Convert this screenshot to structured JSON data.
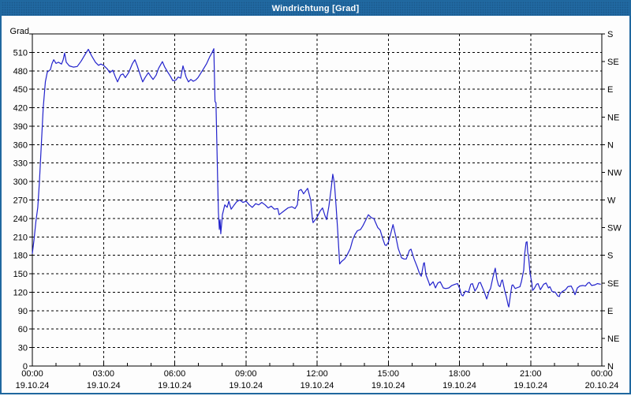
{
  "window": {
    "title": "Windrichtung [Grad]"
  },
  "colors": {
    "titlebar_bg": "#2169a2",
    "titlebar_text": "#ffffff",
    "window_border": "#20689f",
    "plot_border": "#000000",
    "grid": "#000000",
    "label": "#000000",
    "line": "#2222cc",
    "background": "#fdfdfd"
  },
  "chart_data": {
    "type": "line",
    "title": "Windrichtung [Grad]",
    "ylabel_left": "Grad",
    "ylim": [
      0,
      540
    ],
    "y_left_tick_step": 30,
    "y_left_ticks": [
      0,
      30,
      60,
      90,
      120,
      150,
      180,
      210,
      240,
      270,
      300,
      330,
      360,
      390,
      420,
      450,
      480,
      510
    ],
    "y_right_labels": [
      {
        "value": 0,
        "label": "N"
      },
      {
        "value": 45,
        "label": "NE"
      },
      {
        "value": 90,
        "label": "E"
      },
      {
        "value": 135,
        "label": "SE"
      },
      {
        "value": 180,
        "label": "S"
      },
      {
        "value": 225,
        "label": "SW"
      },
      {
        "value": 270,
        "label": "W"
      },
      {
        "value": 315,
        "label": "NW"
      },
      {
        "value": 360,
        "label": "N"
      },
      {
        "value": 405,
        "label": "NE"
      },
      {
        "value": 450,
        "label": "E"
      },
      {
        "value": 495,
        "label": "SE"
      },
      {
        "value": 540,
        "label": "S"
      }
    ],
    "xlim_hours": [
      0,
      24
    ],
    "x_ticks": [
      {
        "hour": 0,
        "time": "00:00",
        "date": "19.10.24"
      },
      {
        "hour": 3,
        "time": "03:00",
        "date": "19.10.24"
      },
      {
        "hour": 6,
        "time": "06:00",
        "date": "19.10.24"
      },
      {
        "hour": 9,
        "time": "09:00",
        "date": "19.10.24"
      },
      {
        "hour": 12,
        "time": "12:00",
        "date": "19.10.24"
      },
      {
        "hour": 15,
        "time": "15:00",
        "date": "19.10.24"
      },
      {
        "hour": 18,
        "time": "18:00",
        "date": "19.10.24"
      },
      {
        "hour": 21,
        "time": "21:00",
        "date": "19.10.24"
      },
      {
        "hour": 24,
        "time": "00:00",
        "date": "20.10.24"
      }
    ],
    "grid": {
      "horizontal_every_deg": 30,
      "vertical_every_hours": 3,
      "style": "dashed"
    },
    "legend": "none",
    "series": [
      {
        "name": "Windrichtung",
        "color": "#2222cc",
        "points": [
          [
            0.0,
            183
          ],
          [
            0.07,
            205
          ],
          [
            0.15,
            235
          ],
          [
            0.23,
            258
          ],
          [
            0.3,
            300
          ],
          [
            0.38,
            360
          ],
          [
            0.46,
            420
          ],
          [
            0.55,
            462
          ],
          [
            0.63,
            478
          ],
          [
            0.7,
            480
          ],
          [
            0.76,
            482
          ],
          [
            0.83,
            492
          ],
          [
            0.9,
            498
          ],
          [
            1.0,
            492
          ],
          [
            1.1,
            494
          ],
          [
            1.23,
            491
          ],
          [
            1.3,
            498
          ],
          [
            1.36,
            509
          ],
          [
            1.43,
            494
          ],
          [
            1.56,
            488
          ],
          [
            1.73,
            486
          ],
          [
            1.89,
            487
          ],
          [
            2.06,
            496
          ],
          [
            2.23,
            507
          ],
          [
            2.36,
            515
          ],
          [
            2.49,
            505
          ],
          [
            2.66,
            494
          ],
          [
            2.79,
            489
          ],
          [
            2.89,
            491
          ],
          [
            3.0,
            489
          ],
          [
            3.16,
            483
          ],
          [
            3.26,
            477
          ],
          [
            3.39,
            481
          ],
          [
            3.49,
            471
          ],
          [
            3.59,
            462
          ],
          [
            3.72,
            473
          ],
          [
            3.82,
            475
          ],
          [
            3.92,
            469
          ],
          [
            4.06,
            477
          ],
          [
            4.22,
            492
          ],
          [
            4.32,
            498
          ],
          [
            4.42,
            488
          ],
          [
            4.55,
            473
          ],
          [
            4.65,
            462
          ],
          [
            4.75,
            469
          ],
          [
            4.89,
            477
          ],
          [
            4.99,
            471
          ],
          [
            5.09,
            466
          ],
          [
            5.22,
            473
          ],
          [
            5.32,
            484
          ],
          [
            5.48,
            495
          ],
          [
            5.58,
            486
          ],
          [
            5.72,
            477
          ],
          [
            5.82,
            471
          ],
          [
            5.92,
            464
          ],
          [
            6.05,
            465
          ],
          [
            6.15,
            470
          ],
          [
            6.25,
            468
          ],
          [
            6.35,
            488
          ],
          [
            6.48,
            470
          ],
          [
            6.58,
            462
          ],
          [
            6.68,
            466
          ],
          [
            6.78,
            463
          ],
          [
            6.88,
            465
          ],
          [
            6.98,
            469
          ],
          [
            7.08,
            475
          ],
          [
            7.21,
            483
          ],
          [
            7.35,
            492
          ],
          [
            7.48,
            503
          ],
          [
            7.58,
            510
          ],
          [
            7.65,
            516
          ],
          [
            7.7,
            430
          ],
          [
            7.74,
            428
          ],
          [
            7.81,
            300
          ],
          [
            7.84,
            250
          ],
          [
            7.88,
            222
          ],
          [
            7.91,
            238
          ],
          [
            7.94,
            215
          ],
          [
            8.01,
            246
          ],
          [
            8.11,
            262
          ],
          [
            8.21,
            258
          ],
          [
            8.28,
            268
          ],
          [
            8.38,
            255
          ],
          [
            8.51,
            262
          ],
          [
            8.61,
            267
          ],
          [
            8.74,
            270
          ],
          [
            8.88,
            266
          ],
          [
            9.01,
            268
          ],
          [
            9.14,
            262
          ],
          [
            9.27,
            258
          ],
          [
            9.41,
            264
          ],
          [
            9.54,
            262
          ],
          [
            9.67,
            266
          ],
          [
            9.81,
            262
          ],
          [
            9.94,
            257
          ],
          [
            10.07,
            260
          ],
          [
            10.2,
            255
          ],
          [
            10.34,
            256
          ],
          [
            10.4,
            246
          ],
          [
            10.6,
            252
          ],
          [
            10.77,
            257
          ],
          [
            10.94,
            259
          ],
          [
            11.07,
            256
          ],
          [
            11.17,
            262
          ],
          [
            11.23,
            285
          ],
          [
            11.33,
            287
          ],
          [
            11.43,
            280
          ],
          [
            11.6,
            289
          ],
          [
            11.73,
            270
          ],
          [
            11.8,
            240
          ],
          [
            11.83,
            233
          ],
          [
            12.0,
            242
          ],
          [
            12.13,
            252
          ],
          [
            12.23,
            257
          ],
          [
            12.33,
            245
          ],
          [
            12.4,
            238
          ],
          [
            12.5,
            260
          ],
          [
            12.6,
            290
          ],
          [
            12.66,
            312
          ],
          [
            12.73,
            297
          ],
          [
            12.8,
            260
          ],
          [
            12.86,
            225
          ],
          [
            12.93,
            180
          ],
          [
            12.95,
            166
          ],
          [
            13.03,
            170
          ],
          [
            13.16,
            174
          ],
          [
            13.26,
            180
          ],
          [
            13.4,
            191
          ],
          [
            13.5,
            205
          ],
          [
            13.6,
            214
          ],
          [
            13.7,
            220
          ],
          [
            13.83,
            222
          ],
          [
            13.93,
            228
          ],
          [
            14.06,
            238
          ],
          [
            14.16,
            246
          ],
          [
            14.29,
            241
          ],
          [
            14.39,
            240
          ],
          [
            14.56,
            225
          ],
          [
            14.66,
            221
          ],
          [
            14.76,
            208
          ],
          [
            14.86,
            197
          ],
          [
            14.92,
            196
          ],
          [
            15.0,
            201
          ],
          [
            15.1,
            215
          ],
          [
            15.2,
            230
          ],
          [
            15.32,
            210
          ],
          [
            15.42,
            191
          ],
          [
            15.56,
            176
          ],
          [
            15.66,
            174
          ],
          [
            15.76,
            174
          ],
          [
            15.89,
            188
          ],
          [
            15.96,
            190
          ],
          [
            16.09,
            174
          ],
          [
            16.22,
            161
          ],
          [
            16.32,
            150
          ],
          [
            16.39,
            146
          ],
          [
            16.49,
            167
          ],
          [
            16.52,
            168
          ],
          [
            16.59,
            148
          ],
          [
            16.72,
            135
          ],
          [
            16.75,
            131
          ],
          [
            16.89,
            137
          ],
          [
            16.99,
            127
          ],
          [
            17.09,
            135
          ],
          [
            17.19,
            137
          ],
          [
            17.32,
            127
          ],
          [
            17.42,
            126
          ],
          [
            17.55,
            127
          ],
          [
            17.68,
            131
          ],
          [
            17.82,
            133
          ],
          [
            17.92,
            134
          ],
          [
            18.02,
            125
          ],
          [
            18.08,
            116
          ],
          [
            18.15,
            114
          ],
          [
            18.25,
            122
          ],
          [
            18.38,
            120
          ],
          [
            18.48,
            133
          ],
          [
            18.55,
            134
          ],
          [
            18.65,
            122
          ],
          [
            18.75,
            128
          ],
          [
            18.81,
            135
          ],
          [
            18.88,
            136
          ],
          [
            19.05,
            120
          ],
          [
            19.15,
            109
          ],
          [
            19.25,
            122
          ],
          [
            19.31,
            126
          ],
          [
            19.41,
            144
          ],
          [
            19.51,
            159
          ],
          [
            19.58,
            141
          ],
          [
            19.65,
            131
          ],
          [
            19.71,
            129
          ],
          [
            19.78,
            139
          ],
          [
            19.81,
            140
          ],
          [
            19.91,
            122
          ],
          [
            19.98,
            112
          ],
          [
            20.05,
            99
          ],
          [
            20.08,
            96
          ],
          [
            20.15,
            116
          ],
          [
            20.21,
            131
          ],
          [
            20.25,
            132
          ],
          [
            20.35,
            126
          ],
          [
            20.41,
            127
          ],
          [
            20.55,
            129
          ],
          [
            20.61,
            137
          ],
          [
            20.71,
            156
          ],
          [
            20.75,
            182
          ],
          [
            20.81,
            201
          ],
          [
            20.85,
            202
          ],
          [
            20.88,
            184
          ],
          [
            20.91,
            180
          ],
          [
            20.98,
            150
          ],
          [
            21.05,
            135
          ],
          [
            21.08,
            123
          ],
          [
            21.15,
            126
          ],
          [
            21.25,
            133
          ],
          [
            21.31,
            134
          ],
          [
            21.41,
            124
          ],
          [
            21.55,
            133
          ],
          [
            21.65,
            135
          ],
          [
            21.75,
            127
          ],
          [
            21.81,
            129
          ],
          [
            21.91,
            121
          ],
          [
            22.04,
            120
          ],
          [
            22.14,
            114
          ],
          [
            22.21,
            113
          ],
          [
            22.24,
            118
          ],
          [
            22.37,
            122
          ],
          [
            22.47,
            124
          ],
          [
            22.57,
            129
          ],
          [
            22.71,
            130
          ],
          [
            22.81,
            122
          ],
          [
            22.87,
            116
          ],
          [
            22.97,
            127
          ],
          [
            23.07,
            130
          ],
          [
            23.21,
            131
          ],
          [
            23.31,
            130
          ],
          [
            23.41,
            135
          ],
          [
            23.47,
            136
          ],
          [
            23.57,
            131
          ],
          [
            23.71,
            132
          ],
          [
            23.81,
            134
          ],
          [
            23.94,
            133
          ]
        ]
      }
    ]
  }
}
